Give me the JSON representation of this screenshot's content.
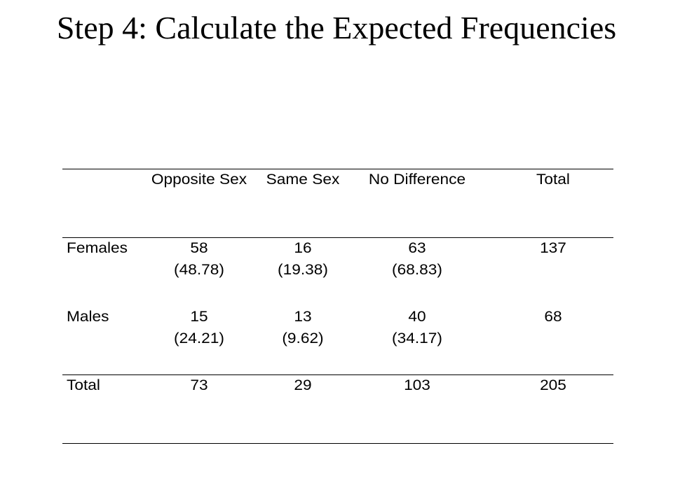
{
  "title": "Step 4: Calculate the Expected Frequencies",
  "table": {
    "headers": [
      "",
      "Opposite Sex",
      "Same Sex",
      "No Difference",
      "Total"
    ],
    "rows": [
      {
        "label": "Females",
        "observed": [
          "58",
          "16",
          "63"
        ],
        "expected": [
          "(48.78)",
          "(19.38)",
          "(68.83)"
        ],
        "total": "137"
      },
      {
        "label": "Males",
        "observed": [
          "15",
          "13",
          "40"
        ],
        "expected": [
          "(24.21)",
          "(9.62)",
          "(34.17)"
        ],
        "total": "68"
      },
      {
        "label": "Total",
        "observed": [
          "73",
          "29",
          "103"
        ],
        "total": "205"
      }
    ]
  }
}
